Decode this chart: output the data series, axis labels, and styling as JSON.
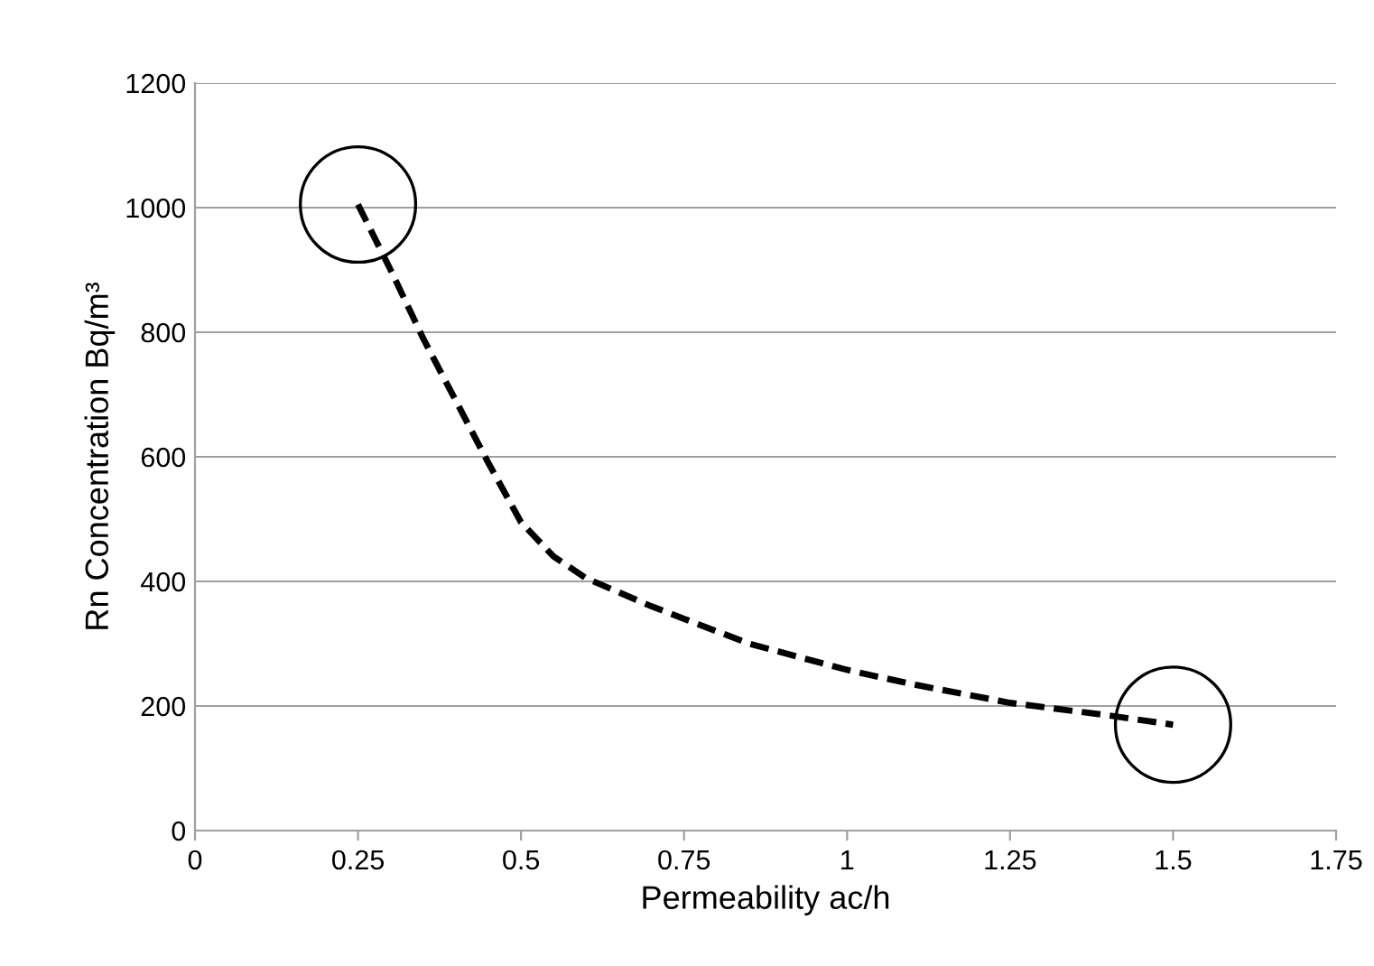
{
  "chart_data": {
    "type": "line",
    "xlabel": "Permeability ac/h",
    "ylabel": "Rn Concentration Bq/m³",
    "series": [
      {
        "color": "#000000",
        "line_style": "dashed",
        "marker": "none",
        "x": [
          0.25,
          0.3,
          0.35,
          0.4,
          0.45,
          0.5,
          0.55,
          0.6,
          0.7,
          0.75,
          0.85,
          1.0,
          1.1,
          1.25,
          1.4,
          1.5
        ],
        "values": [
          1005,
          900,
          790,
          690,
          590,
          495,
          440,
          405,
          360,
          340,
          300,
          258,
          235,
          205,
          185,
          170
        ]
      }
    ],
    "xlim": [
      0,
      1.75
    ],
    "xticks": [
      0,
      0.25,
      0.5,
      0.75,
      1,
      1.25,
      1.5,
      1.75
    ],
    "ylim": [
      0,
      1200
    ],
    "yticks": [
      0,
      200,
      400,
      600,
      800,
      1000,
      1200
    ],
    "grid": "y",
    "legend": false
  }
}
